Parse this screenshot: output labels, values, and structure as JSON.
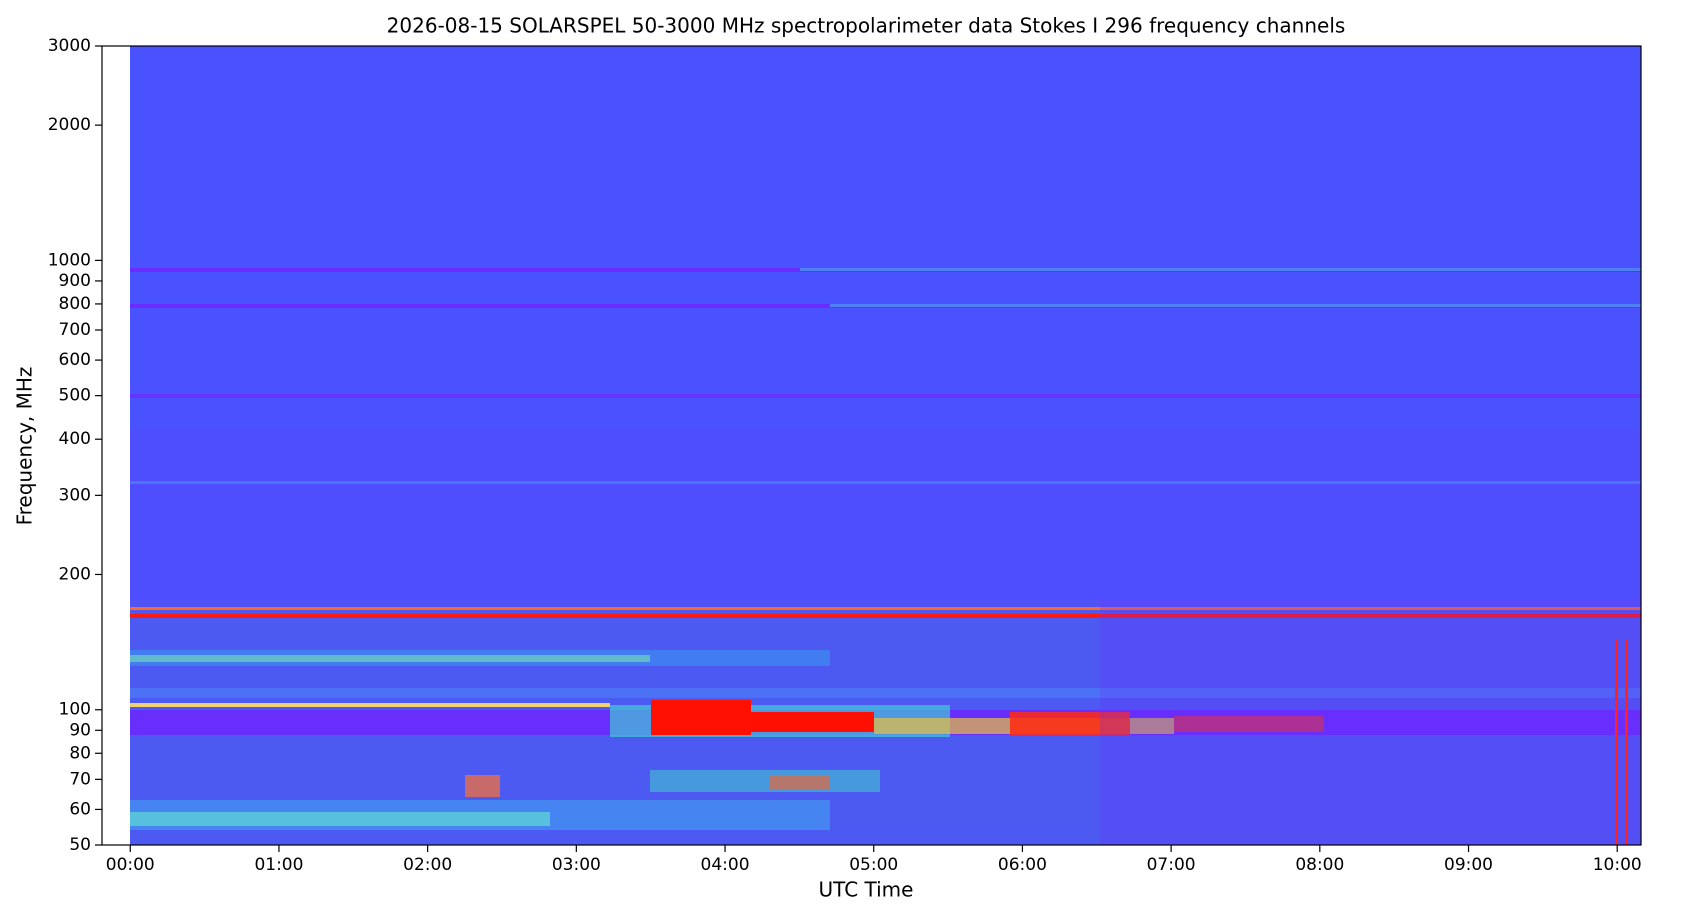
{
  "chart_data": {
    "type": "spectrogram",
    "title": "2026-08-15      SOLARSPEL   50-3000 MHz spectropolarimeter data      Stokes I   296 frequency channels",
    "x_label": "UTC Time",
    "y_label": "Frequency, MHz",
    "xlim": [
      -0.19,
      10.16
    ],
    "ylim": [
      50,
      3000
    ],
    "y_scale": "log",
    "xticks": [
      {
        "value": 0,
        "label": "00:00"
      },
      {
        "value": 1,
        "label": "01:00"
      },
      {
        "value": 2,
        "label": "02:00"
      },
      {
        "value": 3,
        "label": "03:00"
      },
      {
        "value": 4,
        "label": "04:00"
      },
      {
        "value": 5,
        "label": "05:00"
      },
      {
        "value": 6,
        "label": "06:00"
      },
      {
        "value": 7,
        "label": "07:00"
      },
      {
        "value": 8,
        "label": "08:00"
      },
      {
        "value": 9,
        "label": "09:00"
      },
      {
        "value": 10,
        "label": "10:00"
      }
    ],
    "yticks": [
      50,
      60,
      70,
      80,
      90,
      100,
      200,
      300,
      400,
      500,
      600,
      700,
      800,
      900,
      1000,
      2000,
      3000
    ]
  }
}
